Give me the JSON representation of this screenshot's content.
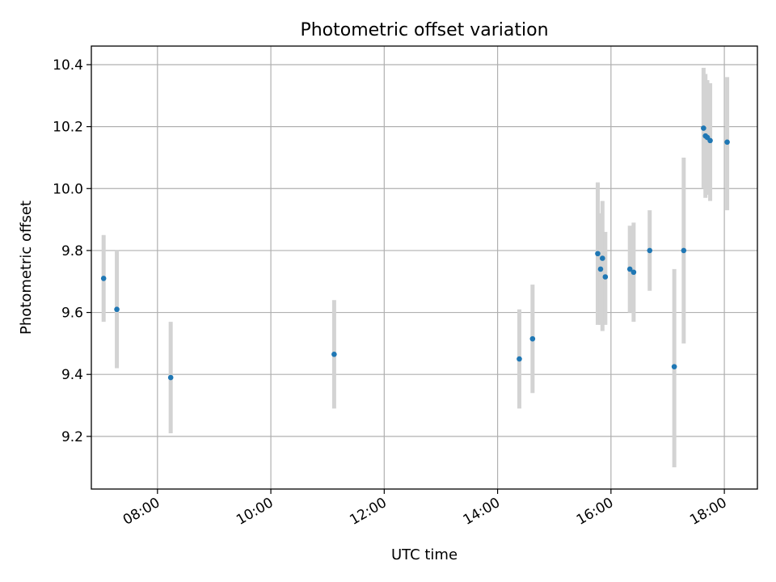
{
  "chart_data": {
    "type": "scatter",
    "title": "Photometric offset variation",
    "xlabel": "UTC time",
    "ylabel": "Photometric offset",
    "x_axis_type": "time",
    "xlim": [
      "06:50",
      "18:35"
    ],
    "ylim": [
      9.03,
      10.46
    ],
    "grid": true,
    "legend": "none",
    "x_ticks": [
      "08:00",
      "10:00",
      "12:00",
      "14:00",
      "16:00",
      "18:00"
    ],
    "y_ticks": [
      "9.2",
      "9.4",
      "9.6",
      "9.8",
      "10.0",
      "10.2",
      "10.4"
    ],
    "point_color": "#1f77b4",
    "errorbar_color": "#d3d3d3",
    "points": [
      {
        "x": "07:03",
        "y": 9.71,
        "ylow": 9.57,
        "yhigh": 9.85
      },
      {
        "x": "07:17",
        "y": 9.61,
        "ylow": 9.42,
        "yhigh": 9.8
      },
      {
        "x": "08:14",
        "y": 9.39,
        "ylow": 9.21,
        "yhigh": 9.57
      },
      {
        "x": "11:07",
        "y": 9.465,
        "ylow": 9.29,
        "yhigh": 9.64
      },
      {
        "x": "14:23",
        "y": 9.45,
        "ylow": 9.29,
        "yhigh": 9.61
      },
      {
        "x": "14:37",
        "y": 9.515,
        "ylow": 9.34,
        "yhigh": 9.69
      },
      {
        "x": "15:46",
        "y": 9.79,
        "ylow": 9.56,
        "yhigh": 10.02
      },
      {
        "x": "15:49",
        "y": 9.74,
        "ylow": 9.56,
        "yhigh": 9.92
      },
      {
        "x": "15:51",
        "y": 9.775,
        "ylow": 9.54,
        "yhigh": 9.96
      },
      {
        "x": "15:54",
        "y": 9.715,
        "ylow": 9.56,
        "yhigh": 9.86
      },
      {
        "x": "16:20",
        "y": 9.74,
        "ylow": 9.6,
        "yhigh": 9.88
      },
      {
        "x": "16:24",
        "y": 9.73,
        "ylow": 9.57,
        "yhigh": 9.89
      },
      {
        "x": "16:41",
        "y": 9.8,
        "ylow": 9.67,
        "yhigh": 9.93
      },
      {
        "x": "17:07",
        "y": 9.425,
        "ylow": 9.1,
        "yhigh": 9.74
      },
      {
        "x": "17:17",
        "y": 9.8,
        "ylow": 9.5,
        "yhigh": 10.1
      },
      {
        "x": "17:38",
        "y": 10.195,
        "ylow": 10.0,
        "yhigh": 10.39
      },
      {
        "x": "17:40",
        "y": 10.17,
        "ylow": 9.97,
        "yhigh": 10.37
      },
      {
        "x": "17:42",
        "y": 10.165,
        "ylow": 9.98,
        "yhigh": 10.35
      },
      {
        "x": "17:45",
        "y": 10.155,
        "ylow": 9.96,
        "yhigh": 10.34
      },
      {
        "x": "18:03",
        "y": 10.15,
        "ylow": 9.93,
        "yhigh": 10.36
      }
    ]
  }
}
